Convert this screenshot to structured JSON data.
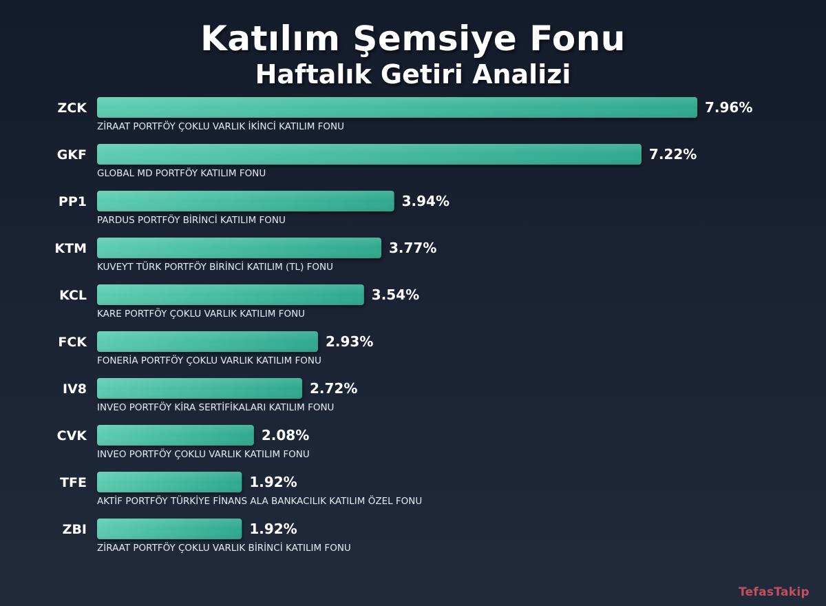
{
  "header": {
    "title": "Katılım Şemsiye Fonu",
    "subtitle": "Haftalık Getiri Analizi"
  },
  "watermark": "TefasTakip",
  "colors": {
    "bar_start": "#5dcdb2",
    "bar_end": "#2fa98e",
    "background": "#1a2233",
    "watermark": "#c4505c"
  },
  "chart_data": {
    "type": "bar",
    "orientation": "horizontal",
    "title": "Katılım Şemsiye Fonu",
    "subtitle": "Haftalık Getiri Analizi",
    "value_suffix": "%",
    "categories": [
      "ZCK",
      "GKF",
      "PP1",
      "KTM",
      "KCL",
      "FCK",
      "IV8",
      "CVK",
      "TFE",
      "ZBI"
    ],
    "fund_names": [
      "ZİRAAT PORTFÖY ÇOKLU VARLIK İKİNCİ KATILIM FONU",
      "GLOBAL MD PORTFÖY KATILIM FONU",
      "PARDUS PORTFÖY BİRİNCİ KATILIM FONU",
      "KUVEYT TÜRK PORTFÖY BİRİNCİ KATILIM (TL) FONU",
      "KARE PORTFÖY ÇOKLU VARLIK KATILIM FONU",
      "FONERİA PORTFÖY ÇOKLU VARLIK KATILIM FONU",
      "INVEO PORTFÖY KİRA SERTİFİKALARI KATILIM FONU",
      "INVEO PORTFÖY ÇOKLU VARLIK KATILIM FONU",
      "AKTİF PORTFÖY TÜRKİYE FİNANS ALA BANKACILIK KATILIM ÖZEL FONU",
      "ZİRAAT PORTFÖY ÇOKLU VARLIK BİRİNCİ KATILIM FONU"
    ],
    "values": [
      7.96,
      7.22,
      3.94,
      3.77,
      3.54,
      2.93,
      2.72,
      2.08,
      1.92,
      1.92
    ],
    "value_labels": [
      "7.96%",
      "7.22%",
      "3.94%",
      "3.77%",
      "3.54%",
      "2.93%",
      "2.72%",
      "2.08%",
      "1.92%",
      "1.92%"
    ],
    "grid": false,
    "legend": "none"
  }
}
